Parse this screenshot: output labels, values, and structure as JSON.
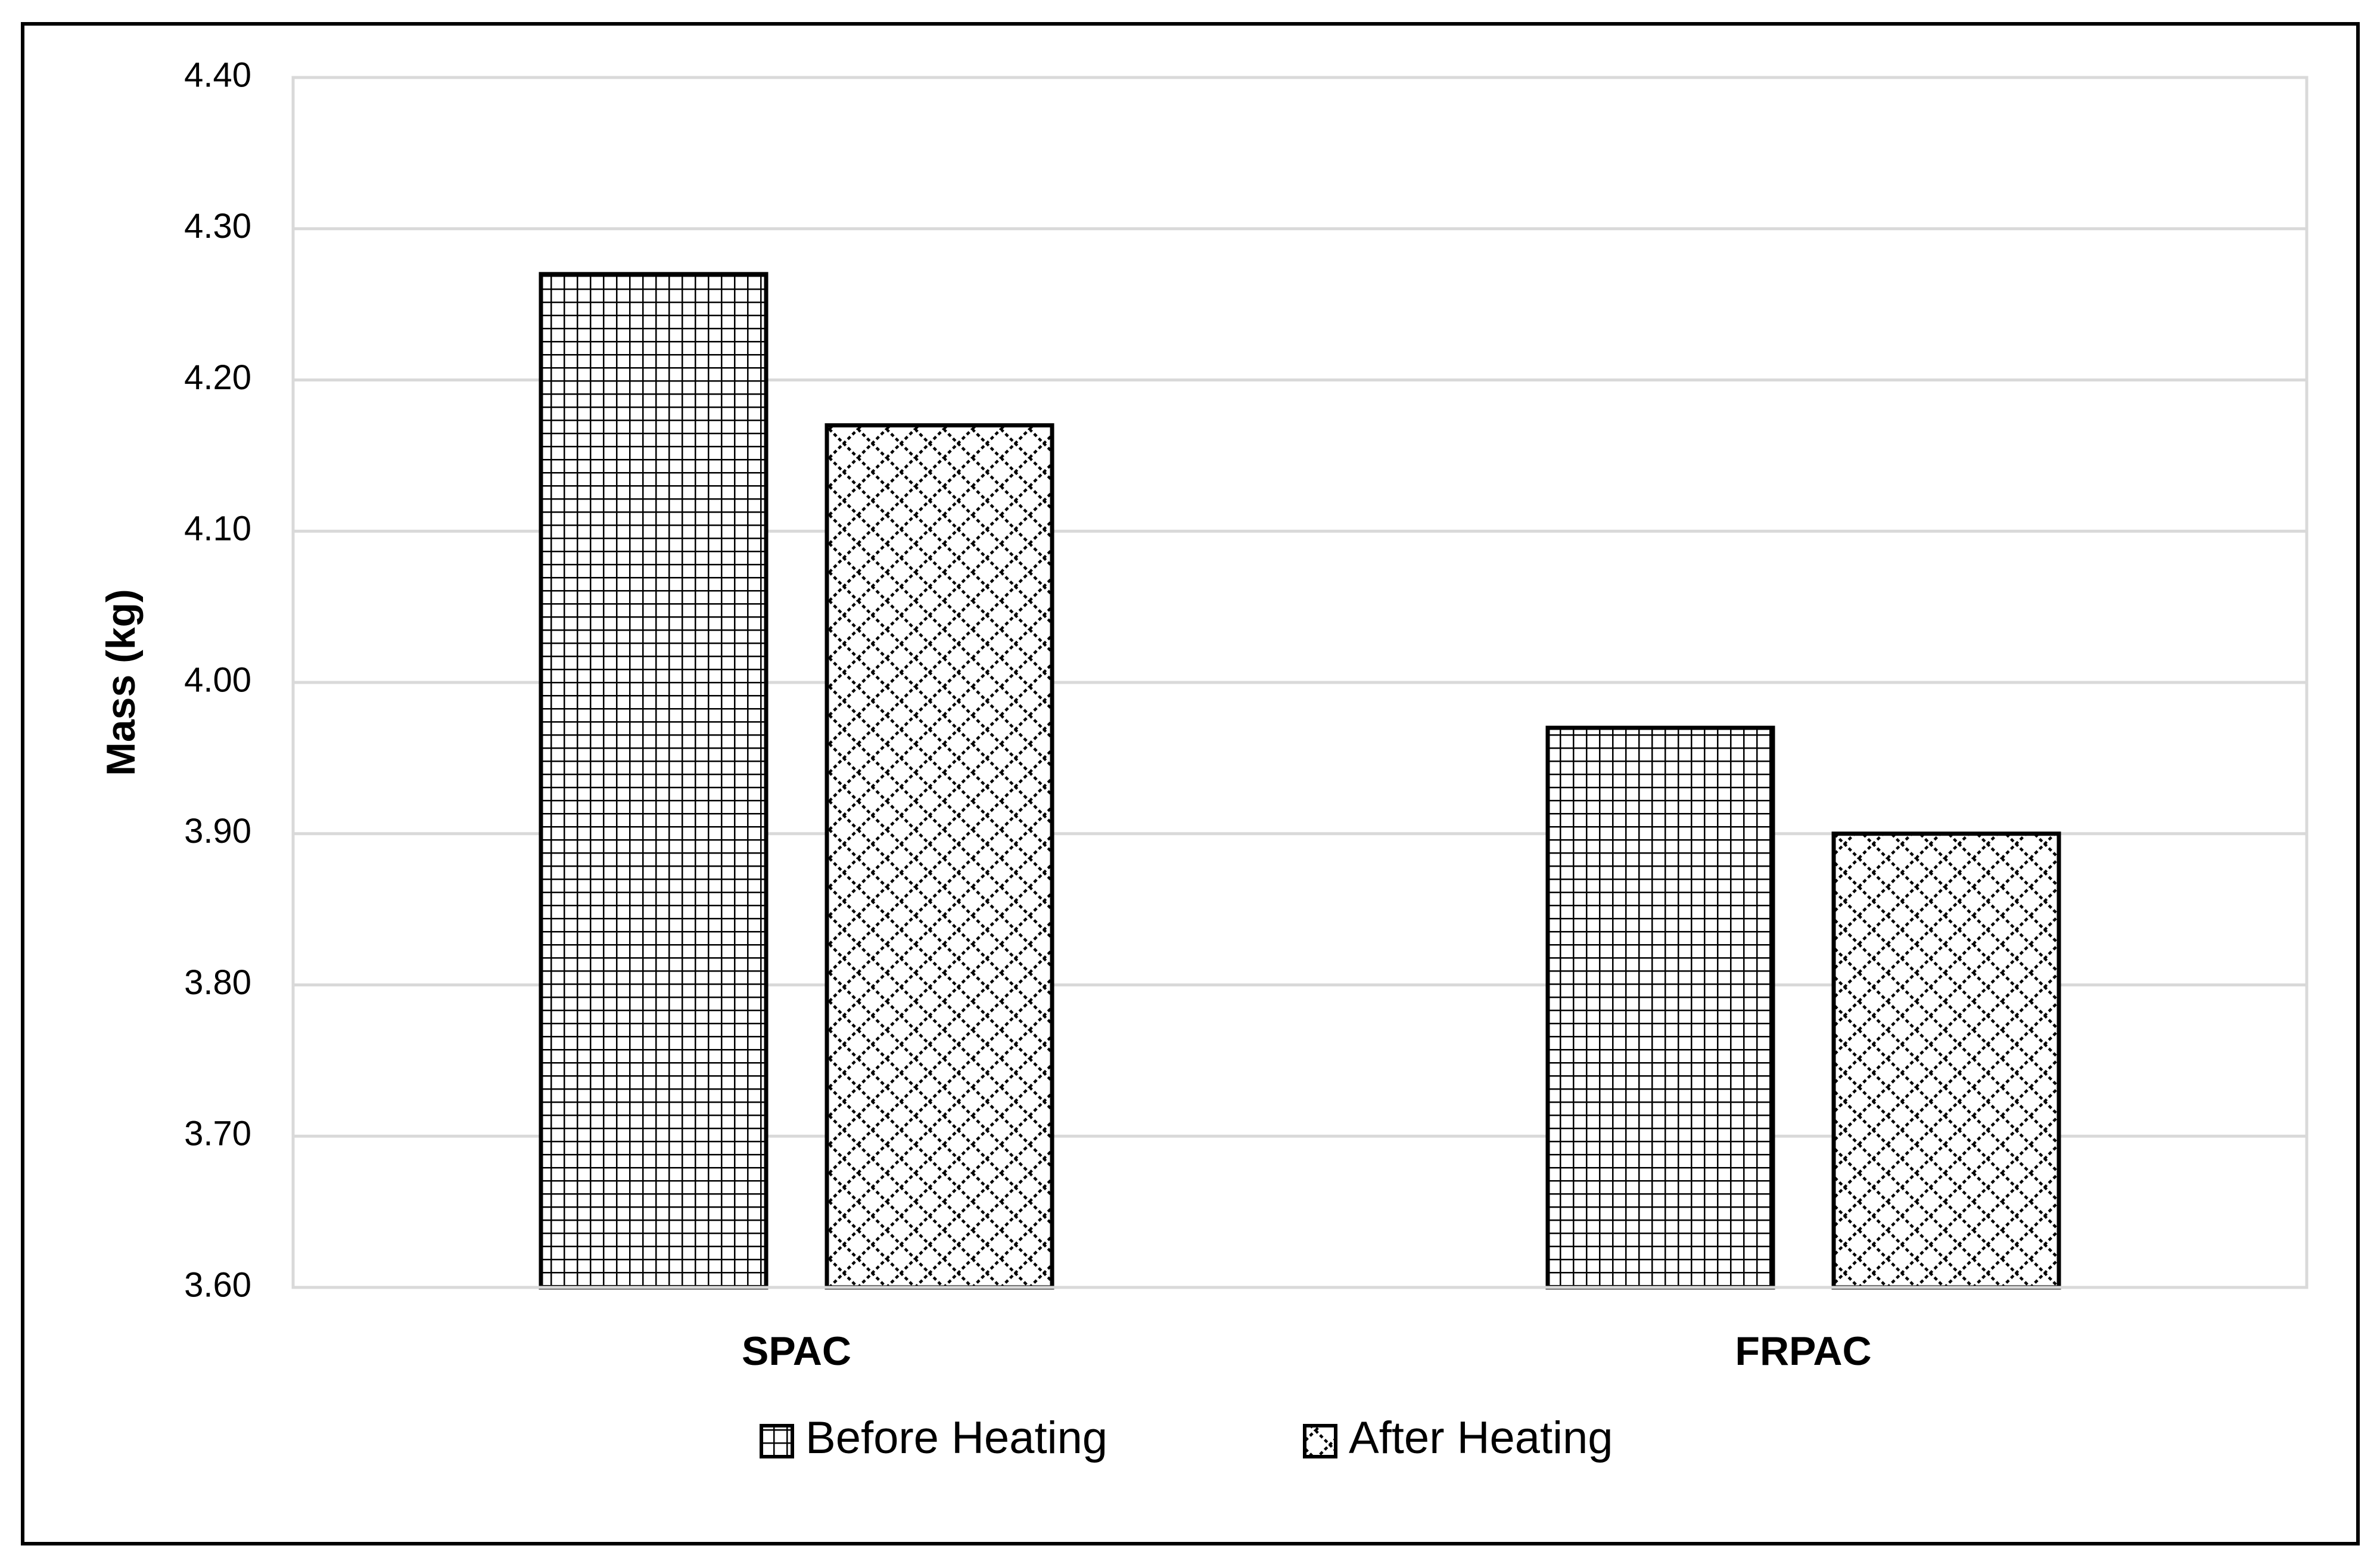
{
  "chart_data": {
    "type": "bar",
    "title": "",
    "xlabel": "",
    "ylabel": "Mass (kg)",
    "ylim": [
      3.6,
      4.4
    ],
    "yticks": [
      "3.60",
      "3.70",
      "3.80",
      "3.90",
      "4.00",
      "4.10",
      "4.20",
      "4.30",
      "4.40"
    ],
    "grid": true,
    "legend_position": "bottom",
    "categories": [
      "SPAC",
      "FRPAC"
    ],
    "series": [
      {
        "name": "Before Heating",
        "pattern": "grid",
        "values": [
          4.27,
          3.97
        ]
      },
      {
        "name": "After Heating",
        "pattern": "diamond-hatch",
        "values": [
          4.17,
          3.9
        ]
      }
    ],
    "colors": {
      "bar_fill": "#ffffff",
      "bar_stroke": "#000000",
      "gridline": "#d9d9d9",
      "text": "#000000"
    }
  }
}
